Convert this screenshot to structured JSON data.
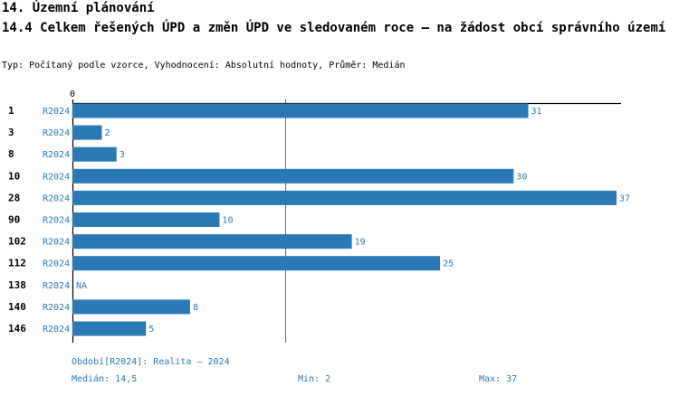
{
  "header": {
    "section_title": "14. Územní plánování",
    "chart_title": "14.4 Celkem řešených ÚPD a změn ÚPD ve sledovaném roce – na žádost obcí správního území",
    "subtitle": "Typ: Počítaný podle vzorce, Vyhodnocení: Absolutní hodnoty, Průměr: Medián"
  },
  "chart_data": {
    "type": "bar",
    "orientation": "horizontal",
    "x_tick_label": "0",
    "xlim": [
      0,
      37
    ],
    "categories": [
      "1",
      "3",
      "8",
      "10",
      "28",
      "90",
      "102",
      "112",
      "138",
      "140",
      "146"
    ],
    "series": [
      {
        "name": "R2024",
        "values": [
          31,
          2,
          3,
          30,
          37,
          10,
          19,
          25,
          null,
          8,
          5
        ],
        "value_labels": [
          "31",
          "2",
          "3",
          "30",
          "37",
          "10",
          "19",
          "25",
          "NA",
          "8",
          "5"
        ],
        "color": "#2b79b4"
      }
    ],
    "median": 14.5,
    "median_line_color": "#2b79b4"
  },
  "footer": {
    "period_legend": "Období[R2024]: Realita – 2024",
    "median": "Medián: 14,5",
    "min": "Min: 2",
    "max": "Max: 37"
  },
  "colors": {
    "bar": "#2b79b4",
    "label": "#2b79b4",
    "axis": "#000000"
  }
}
